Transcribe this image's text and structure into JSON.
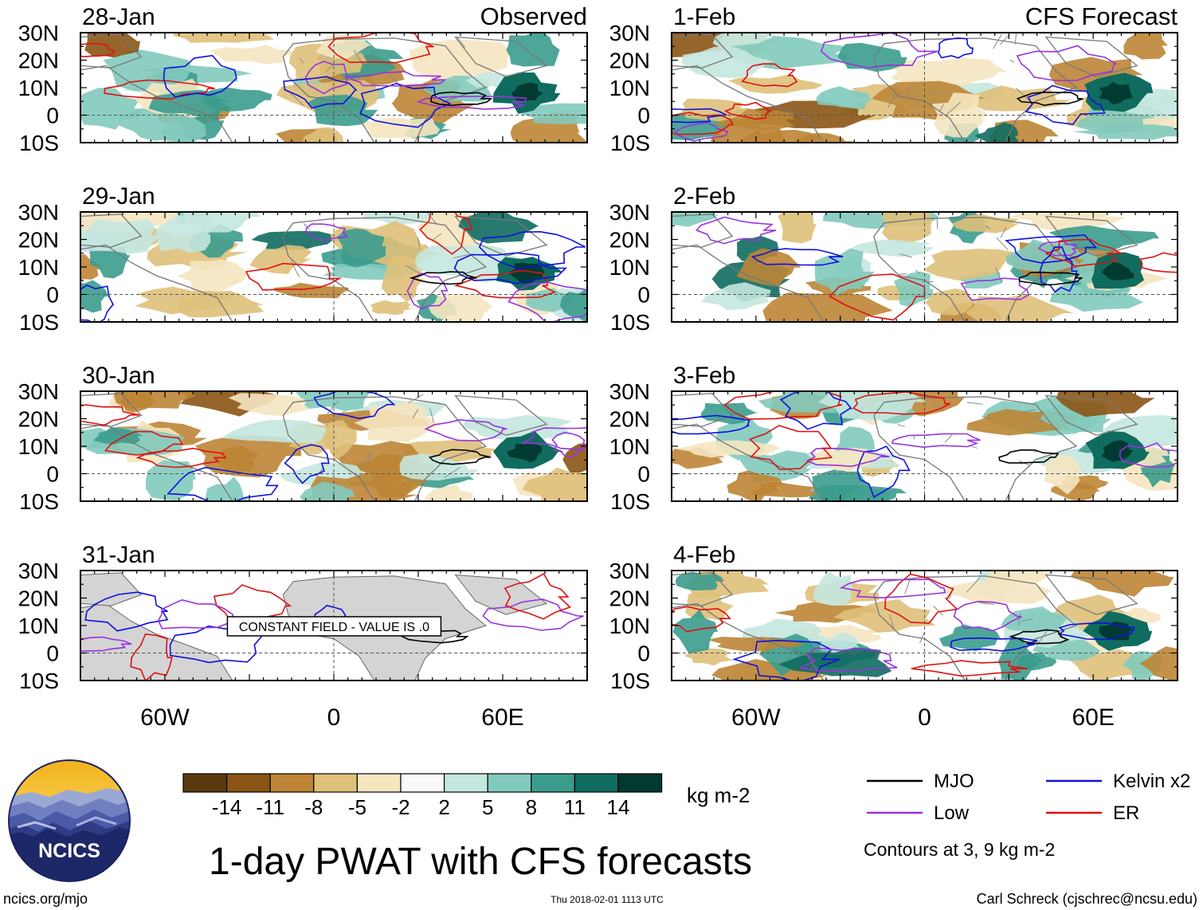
{
  "title": "1-day PWAT with CFS forecasts",
  "observed_label": "Observed",
  "forecast_label": "CFS Forecast",
  "constant_field_note": "CONSTANT FIELD - VALUE IS .0",
  "panels_observed": [
    {
      "date": "28-Jan",
      "constant": false
    },
    {
      "date": "29-Jan",
      "constant": false
    },
    {
      "date": "30-Jan",
      "constant": false
    },
    {
      "date": "31-Jan",
      "constant": true
    }
  ],
  "panels_forecast": [
    {
      "date": "1-Feb"
    },
    {
      "date": "2-Feb"
    },
    {
      "date": "3-Feb"
    },
    {
      "date": "4-Feb"
    }
  ],
  "lat_labels": [
    "30N",
    "20N",
    "10N",
    "0",
    "10S"
  ],
  "lon_labels": [
    "60W",
    "0",
    "60E"
  ],
  "colorbar": {
    "colors": [
      "#5a3a0c",
      "#8a5414",
      "#bd8535",
      "#dfc07a",
      "#f5e6c0",
      "#f9f9f9",
      "#c4e7df",
      "#82cabd",
      "#3b9c8e",
      "#0f6c5f",
      "#013a31"
    ],
    "tick_labels": [
      "-14",
      "-11",
      "-8",
      "-5",
      "-2",
      "2",
      "5",
      "8",
      "11",
      "14"
    ],
    "units": "kg m-2"
  },
  "legend": {
    "items": [
      {
        "label": "MJO",
        "color": "#000000"
      },
      {
        "label": "Kelvin x2",
        "color": "#1010dd"
      },
      {
        "label": "Low",
        "color": "#9933dd"
      },
      {
        "label": "ER",
        "color": "#e01010"
      }
    ],
    "contours_note": "Contours at 3, 9 kg m-2"
  },
  "footer": {
    "site": "ncics.org/mjo",
    "timestamp": "Thu 2018-02-01 1113 UTC",
    "author": "Carl Schreck (cjschrec@ncsu.edu)"
  },
  "logo_text": "NCICS"
}
